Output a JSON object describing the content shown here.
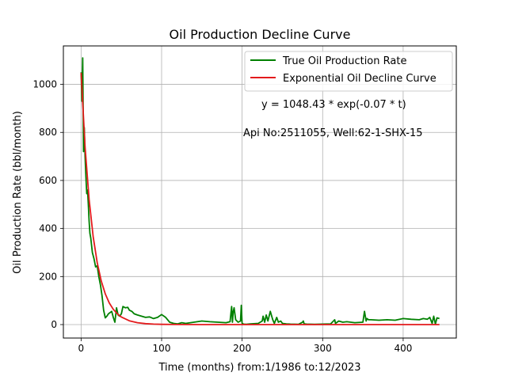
{
  "chart_data": {
    "type": "line",
    "title": "Oil Production Decline Curve",
    "xlabel": "Time (months) from:1/1986 to:12/2023",
    "ylabel": "Oil Production Rate (bbl/month)",
    "xlim": [
      -22,
      466
    ],
    "ylim": [
      -56,
      1160
    ],
    "xticks": [
      0,
      100,
      200,
      300,
      400
    ],
    "yticks": [
      0,
      200,
      400,
      600,
      800,
      1000
    ],
    "grid": true,
    "legend_position": "top-right",
    "annotations": {
      "equation": "y = 1048.43 * exp(-0.07 * t)",
      "well_info": "Api No:2511055, Well:62-1-SHX-15"
    },
    "series": [
      {
        "name": "True Oil Production Rate",
        "color": "#008000",
        "x": [
          0,
          1,
          2,
          3,
          4,
          5,
          6,
          7,
          8,
          9,
          10,
          11,
          12,
          14,
          16,
          18,
          20,
          22,
          24,
          26,
          28,
          30,
          32,
          34,
          36,
          38,
          40,
          42,
          44,
          46,
          48,
          50,
          52,
          55,
          58,
          60,
          63,
          66,
          70,
          75,
          80,
          85,
          90,
          95,
          100,
          105,
          110,
          115,
          120,
          125,
          130,
          140,
          150,
          160,
          170,
          180,
          185,
          187,
          188,
          189,
          190,
          192,
          195,
          198,
          199,
          200,
          201,
          202,
          205,
          210,
          220,
          225,
          226,
          228,
          230,
          232,
          235,
          238,
          240,
          243,
          245,
          248,
          250,
          255,
          260,
          270,
          275,
          276,
          277,
          280,
          290,
          300,
          310,
          315,
          316,
          318,
          320,
          325,
          330,
          340,
          350,
          352,
          354,
          355,
          357,
          360,
          370,
          380,
          390,
          400,
          410,
          420,
          425,
          430,
          433,
          436,
          438,
          440,
          442,
          445
        ],
        "values": [
          1050,
          930,
          1110,
          720,
          820,
          700,
          610,
          545,
          560,
          500,
          430,
          380,
          360,
          300,
          275,
          240,
          245,
          200,
          165,
          120,
          60,
          28,
          35,
          45,
          50,
          55,
          30,
          10,
          70,
          40,
          35,
          45,
          75,
          70,
          72,
          60,
          55,
          45,
          40,
          35,
          30,
          32,
          25,
          30,
          42,
          30,
          10,
          5,
          3,
          8,
          5,
          10,
          15,
          12,
          10,
          8,
          12,
          75,
          10,
          55,
          70,
          20,
          10,
          15,
          80,
          5,
          3,
          2,
          1,
          3,
          5,
          15,
          35,
          10,
          40,
          15,
          55,
          20,
          5,
          30,
          10,
          15,
          5,
          3,
          2,
          1,
          10,
          15,
          3,
          2,
          1,
          2,
          3,
          20,
          5,
          10,
          15,
          10,
          12,
          8,
          10,
          55,
          15,
          25,
          20,
          20,
          18,
          20,
          18,
          25,
          22,
          20,
          25,
          22,
          30,
          5,
          35,
          2,
          28,
          25
        ]
      },
      {
        "name": "Exponential Oil Decline Curve",
        "color": "#e31a1c",
        "x": [
          0,
          5,
          10,
          15,
          20,
          25,
          30,
          35,
          40,
          45,
          50,
          60,
          70,
          80,
          90,
          100,
          120,
          150,
          200,
          250,
          300,
          350,
          400,
          445
        ],
        "values": [
          1048.4,
          738.3,
          520.6,
          366.4,
          258.0,
          181.7,
          128.0,
          90.2,
          63.5,
          44.7,
          31.6,
          15.7,
          7.8,
          3.9,
          1.9,
          1.0,
          0.2,
          0,
          0,
          0,
          0,
          0,
          0,
          0
        ]
      }
    ]
  }
}
